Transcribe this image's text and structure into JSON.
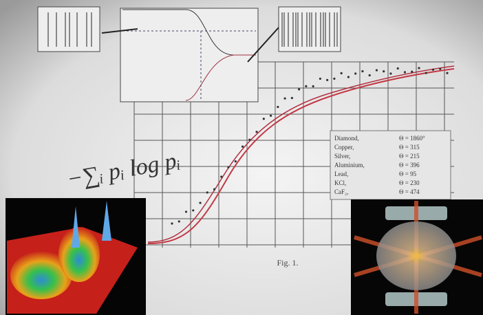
{
  "formula": "−∑ᵢ pᵢ log pᵢ",
  "figure_caption": "Fig. 1.",
  "legend": [
    {
      "name": "Diamond,",
      "theta": "Θ = 1860°"
    },
    {
      "name": "Copper,",
      "theta": "Θ = 315"
    },
    {
      "name": "Silver,",
      "theta": "Θ = 215"
    },
    {
      "name": "Aluminium,",
      "theta": "Θ = 396"
    },
    {
      "name": "Lead,",
      "theta": "Θ = 95"
    },
    {
      "name": "KCl,",
      "theta": "Θ = 230"
    },
    {
      "name": "CaF₂,",
      "theta": "Θ = 474"
    }
  ]
}
